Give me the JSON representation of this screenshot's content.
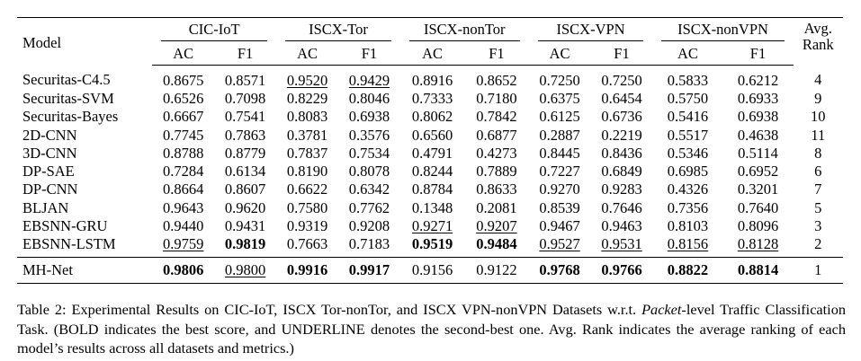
{
  "table": {
    "header": {
      "model": "Model",
      "groups": [
        "CIC-IoT",
        "ISCX-Tor",
        "ISCX-nonTor",
        "ISCX-VPN",
        "ISCX-nonVPN"
      ],
      "metrics": [
        "AC",
        "F1"
      ],
      "rank_line1": "Avg.",
      "rank_line2": "Rank"
    },
    "rows": [
      {
        "model": "Securitas-C4.5",
        "cells": [
          "0.8675",
          "0.8571",
          "0.9520",
          "0.9429",
          "0.8916",
          "0.8652",
          "0.7250",
          "0.7250",
          "0.5833",
          "0.6212"
        ],
        "rank": "4",
        "bold": [],
        "underline": [
          2,
          3
        ]
      },
      {
        "model": "Securitas-SVM",
        "cells": [
          "0.6526",
          "0.7098",
          "0.8229",
          "0.8046",
          "0.7333",
          "0.7180",
          "0.6375",
          "0.6454",
          "0.5750",
          "0.6933"
        ],
        "rank": "9",
        "bold": [],
        "underline": []
      },
      {
        "model": "Securitas-Bayes",
        "cells": [
          "0.6667",
          "0.7541",
          "0.8083",
          "0.6938",
          "0.8062",
          "0.7842",
          "0.6125",
          "0.6736",
          "0.5416",
          "0.6938"
        ],
        "rank": "10",
        "bold": [],
        "underline": []
      },
      {
        "model": "2D-CNN",
        "cells": [
          "0.7745",
          "0.7863",
          "0.3781",
          "0.3576",
          "0.6560",
          "0.6877",
          "0.2887",
          "0.2219",
          "0.5517",
          "0.4638"
        ],
        "rank": "11",
        "bold": [],
        "underline": []
      },
      {
        "model": "3D-CNN",
        "cells": [
          "0.8788",
          "0.8779",
          "0.7837",
          "0.7534",
          "0.4791",
          "0.4273",
          "0.8445",
          "0.8436",
          "0.5346",
          "0.5114"
        ],
        "rank": "8",
        "bold": [],
        "underline": []
      },
      {
        "model": "DP-SAE",
        "cells": [
          "0.7284",
          "0.6134",
          "0.8190",
          "0.8078",
          "0.8244",
          "0.7889",
          "0.7227",
          "0.6849",
          "0.6985",
          "0.6952"
        ],
        "rank": "6",
        "bold": [],
        "underline": []
      },
      {
        "model": "DP-CNN",
        "cells": [
          "0.8664",
          "0.8607",
          "0.6622",
          "0.6342",
          "0.8784",
          "0.8633",
          "0.9270",
          "0.9283",
          "0.4326",
          "0.3201"
        ],
        "rank": "7",
        "bold": [],
        "underline": []
      },
      {
        "model": "BLJAN",
        "cells": [
          "0.9643",
          "0.9620",
          "0.7580",
          "0.7762",
          "0.1348",
          "0.2081",
          "0.8539",
          "0.7646",
          "0.7356",
          "0.7640"
        ],
        "rank": "5",
        "bold": [],
        "underline": []
      },
      {
        "model": "EBSNN-GRU",
        "cells": [
          "0.9440",
          "0.9431",
          "0.9319",
          "0.9208",
          "0.9271",
          "0.9207",
          "0.9467",
          "0.9463",
          "0.8103",
          "0.8096"
        ],
        "rank": "3",
        "bold": [],
        "underline": [
          4,
          5
        ]
      },
      {
        "model": "EBSNN-LSTM",
        "cells": [
          "0.9759",
          "0.9819",
          "0.7663",
          "0.7183",
          "0.9519",
          "0.9484",
          "0.9527",
          "0.9531",
          "0.8156",
          "0.8128"
        ],
        "rank": "2",
        "bold": [
          1,
          4,
          5
        ],
        "underline": [
          0,
          6,
          7,
          8,
          9
        ]
      }
    ],
    "final_row": {
      "model": "MH-Net",
      "cells": [
        "0.9806",
        "0.9800",
        "0.9916",
        "0.9917",
        "0.9156",
        "0.9122",
        "0.9768",
        "0.9766",
        "0.8822",
        "0.8814"
      ],
      "rank": "1",
      "bold": [
        0,
        2,
        3,
        6,
        7,
        8,
        9
      ],
      "underline": [
        1
      ]
    }
  },
  "caption": {
    "part1": "Table 2: Experimental Results on CIC-IoT, ISCX Tor-nonTor, and ISCX VPN-nonVPN Datasets w.r.t. ",
    "italic": "Packet",
    "part2": "-level Traffic Classification Task. (BOLD indicates the best score, and UNDERLINE denotes the second-best one. Avg. Rank indicates the average ranking of each model’s results across all datasets and metrics.)"
  }
}
